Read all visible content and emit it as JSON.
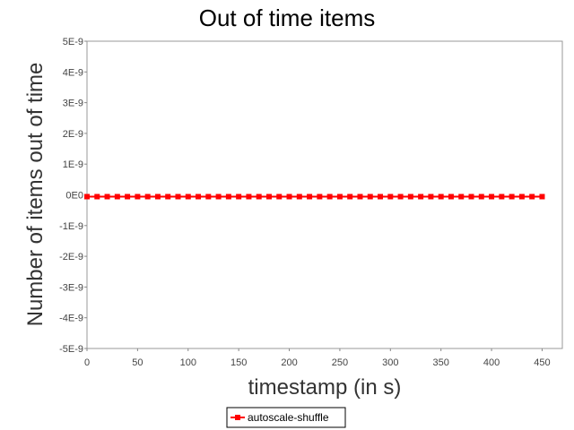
{
  "chart_data": {
    "type": "line",
    "title": "Out of time items",
    "xlabel": "timestamp (in s)",
    "ylabel": "Number of items out of time",
    "xlim": [
      0,
      470
    ],
    "ylim": [
      -5e-09,
      5e-09
    ],
    "x_ticks": [
      0,
      50,
      100,
      150,
      200,
      250,
      300,
      350,
      400,
      450
    ],
    "x_tick_labels": [
      "0",
      "50",
      "100",
      "150",
      "200",
      "250",
      "300",
      "350",
      "400",
      "450"
    ],
    "y_ticks": [
      5e-09,
      4e-09,
      3e-09,
      2e-09,
      1e-09,
      0,
      -1e-09,
      -2e-09,
      -3e-09,
      -4e-09,
      -5e-09
    ],
    "y_tick_labels": [
      "5E-9",
      "4E-9",
      "3E-9",
      "2E-9",
      "1E-9",
      "0E0",
      "-1E-9",
      "-2E-9",
      "-3E-9",
      "-4E-9",
      "-5E-9"
    ],
    "grid": false,
    "legend_position": "bottom-center",
    "series": [
      {
        "name": "autoscale-shuffle",
        "color": "#ff0000",
        "marker": "square",
        "x": [
          0,
          10,
          20,
          30,
          40,
          50,
          60,
          70,
          80,
          90,
          100,
          110,
          120,
          130,
          140,
          150,
          160,
          170,
          180,
          190,
          200,
          210,
          220,
          230,
          240,
          250,
          260,
          270,
          280,
          290,
          300,
          310,
          320,
          330,
          340,
          350,
          360,
          370,
          380,
          390,
          400,
          410,
          420,
          430,
          440,
          450
        ],
        "y": [
          0,
          0,
          0,
          0,
          0,
          0,
          0,
          0,
          0,
          0,
          0,
          0,
          0,
          0,
          0,
          0,
          0,
          0,
          0,
          0,
          0,
          0,
          0,
          0,
          0,
          0,
          0,
          0,
          0,
          0,
          0,
          0,
          0,
          0,
          0,
          0,
          0,
          0,
          0,
          0,
          0,
          0,
          0,
          0,
          0,
          0
        ]
      }
    ]
  }
}
